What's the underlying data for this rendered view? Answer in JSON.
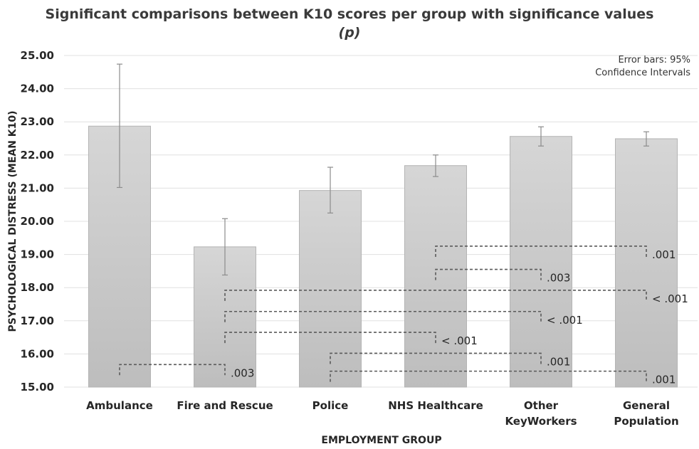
{
  "chart_data": {
    "type": "bar",
    "title": "Significant comparisons between K10 scores per group with significance values",
    "title_symbol": "(p)",
    "xlabel": "EMPLOYMENT GROUP",
    "ylabel": "PSYCHOLOGICAL DISTRESS (MEAN K10)",
    "ylim": [
      15,
      25
    ],
    "yticks": [
      "15.00",
      "16.00",
      "17.00",
      "18.00",
      "19.00",
      "20.00",
      "21.00",
      "22.00",
      "23.00",
      "24.00",
      "25.00"
    ],
    "grid": true,
    "note": [
      "Error bars: 95%",
      "Confidence Intervals"
    ],
    "categories": [
      [
        "Ambulance"
      ],
      [
        "Fire and Rescue"
      ],
      [
        "Police"
      ],
      [
        "NHS Healthcare"
      ],
      [
        "Other",
        "KeyWorkers"
      ],
      [
        "General",
        "Population"
      ]
    ],
    "values": [
      22.87,
      19.23,
      20.93,
      21.68,
      22.56,
      22.49
    ],
    "ci_low": [
      21.02,
      18.38,
      20.25,
      21.35,
      22.27,
      22.27
    ],
    "ci_high": [
      24.74,
      20.08,
      21.63,
      22.0,
      22.85,
      22.7
    ],
    "comparisons": [
      {
        "from": 4,
        "to": 6,
        "level": 19.25,
        "label": ".001"
      },
      {
        "from": 4,
        "to": 5,
        "level": 18.55,
        "label": ".003"
      },
      {
        "from": 2,
        "to": 6,
        "level": 17.92,
        "label": "< .001"
      },
      {
        "from": 2,
        "to": 5,
        "level": 17.28,
        "label": "< .001"
      },
      {
        "from": 2,
        "to": 4,
        "level": 16.65,
        "label": "< .001"
      },
      {
        "from": 3,
        "to": 5,
        "level": 16.02,
        "label": ".001"
      },
      {
        "from": 1,
        "to": 2,
        "level": 15.68,
        "label": ".003"
      },
      {
        "from": 3,
        "to": 6,
        "level": 15.48,
        "label": ".001"
      }
    ]
  }
}
